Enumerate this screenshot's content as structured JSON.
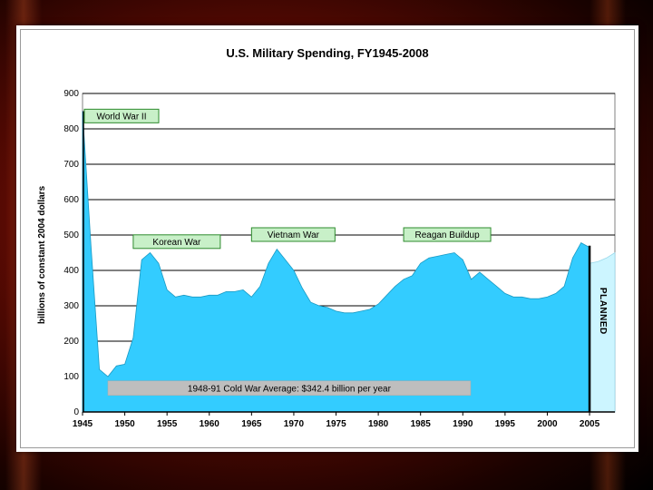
{
  "chart_data": {
    "type": "area",
    "title": "U.S. Military Spending, FY1945-2008",
    "ylabel": "billions of constant 2004 dollars",
    "xlabel": "",
    "ylim": [
      0,
      900
    ],
    "xlim": [
      1945,
      2008
    ],
    "yticks": [
      0,
      100,
      200,
      300,
      400,
      500,
      600,
      700,
      800,
      900
    ],
    "xticks": [
      1945,
      1950,
      1955,
      1960,
      1965,
      1970,
      1975,
      1980,
      1985,
      1990,
      1995,
      2000,
      2005
    ],
    "grid": true,
    "series": [
      {
        "name": "",
        "color": "#33ccff",
        "x": [
          1945,
          1946,
          1947,
          1948,
          1949,
          1950,
          1951,
          1952,
          1953,
          1954,
          1955,
          1956,
          1957,
          1958,
          1959,
          1960,
          1961,
          1962,
          1963,
          1964,
          1965,
          1966,
          1967,
          1968,
          1969,
          1970,
          1971,
          1972,
          1973,
          1974,
          1975,
          1976,
          1977,
          1978,
          1979,
          1980,
          1981,
          1982,
          1983,
          1984,
          1985,
          1986,
          1987,
          1988,
          1989,
          1990,
          1991,
          1992,
          1993,
          1994,
          1995,
          1996,
          1997,
          1998,
          1999,
          2000,
          2001,
          2002,
          2003,
          2004,
          2005
        ],
        "values": [
          850,
          470,
          120,
          100,
          130,
          135,
          210,
          430,
          450,
          420,
          345,
          325,
          330,
          325,
          325,
          330,
          330,
          340,
          340,
          345,
          325,
          355,
          420,
          460,
          430,
          400,
          350,
          310,
          300,
          295,
          285,
          280,
          280,
          285,
          290,
          305,
          330,
          355,
          375,
          385,
          420,
          435,
          440,
          445,
          450,
          430,
          375,
          395,
          375,
          355,
          335,
          325,
          325,
          320,
          320,
          325,
          335,
          355,
          435,
          478,
          465
        ]
      },
      {
        "name": "PLANNED",
        "color": "#ccf5ff",
        "x": [
          2005,
          2006,
          2007,
          2008
        ],
        "values": [
          420,
          425,
          435,
          450
        ]
      }
    ],
    "annotations": [
      {
        "text": "World War II",
        "x": 1945,
        "y": 835
      },
      {
        "text": "Korean War",
        "x": 1951,
        "y": 480
      },
      {
        "text": "Vietnam War",
        "x": 1965,
        "y": 500
      },
      {
        "text": "Reagan Buildup",
        "x": 1983,
        "y": 500
      },
      {
        "text": "1948-91 Cold War Average: $342.4 billion per year",
        "x": 1948,
        "y": 70
      },
      {
        "text": "PLANNED",
        "x": 2006.3,
        "y": 285
      }
    ]
  },
  "colors": {
    "area": "#33ccff",
    "planned_area": "#ccf5ff",
    "label_box_fill": "#c8f0c8",
    "label_box_border": "#2e8b2e",
    "average_bar": "#bebebe"
  }
}
